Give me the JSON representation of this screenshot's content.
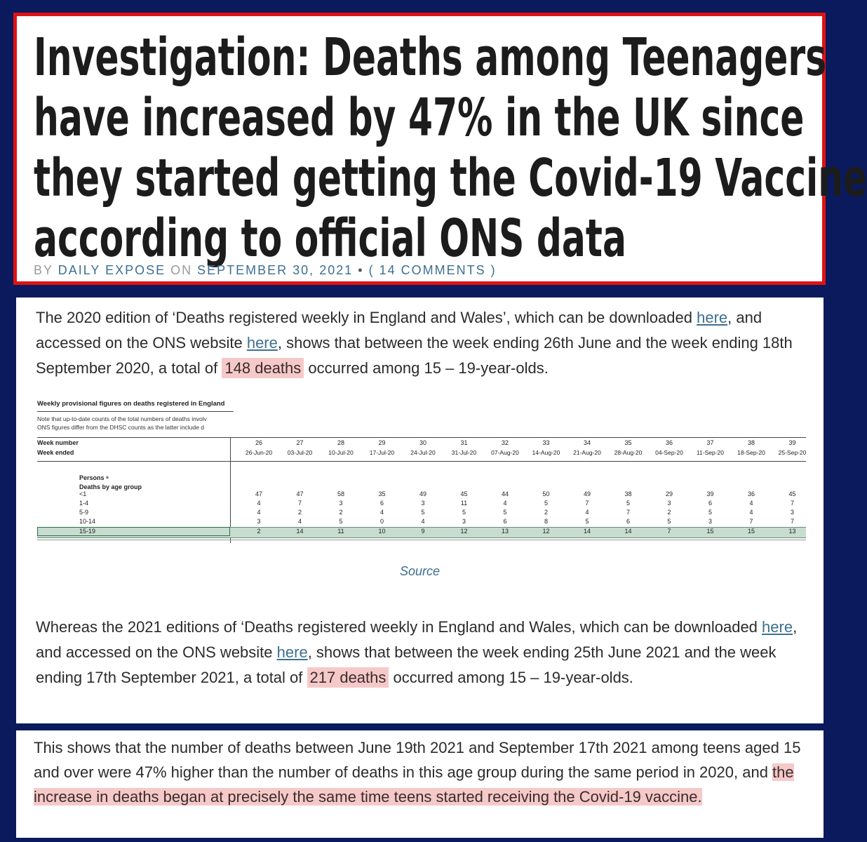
{
  "headline": {
    "lines": [
      "Investigation: Deaths among Teenagers",
      "have increased by 47% in the UK since",
      "they started getting the Covid-19 Vaccine",
      "according to official ONS data"
    ]
  },
  "byline": {
    "by": "BY",
    "author": "DAILY EXPOSE",
    "on": "ON",
    "date": "SEPTEMBER 30, 2021",
    "sep": "•",
    "comments": "( 14 COMMENTS )"
  },
  "para1": {
    "t1": "The 2020 edition of ‘Deaths registered weekly in England and Wales’, which can be downloaded ",
    "link1": "here",
    "t2": ", and accessed on the ONS website ",
    "link2": "here",
    "t3": ", shows that between the week ending 26th June and the week ending 18th September 2020, a total of ",
    "highlight": "148 deaths",
    "t4": " occurred among 15 – 19-year-olds."
  },
  "spreadsheet": {
    "title": "Weekly provisional figures on deaths registered in England",
    "note1": "Note that up-to-date counts of the total numbers of deaths involv",
    "note2": "ONS figures differ from the DHSC counts as the latter include d",
    "week_number_label": "Week number",
    "week_ended_label": "Week ended",
    "persons_label": "Persons ⁶",
    "deaths_label": "Deaths by age group",
    "weeks": [
      "26",
      "27",
      "28",
      "29",
      "30",
      "31",
      "32",
      "33",
      "34",
      "35",
      "36",
      "37",
      "38",
      "39"
    ],
    "dates": [
      "26-Jun-20",
      "03-Jul-20",
      "10-Jul-20",
      "17-Jul-20",
      "24-Jul-20",
      "31-Jul-20",
      "07-Aug-20",
      "14-Aug-20",
      "21-Aug-20",
      "28-Aug-20",
      "04-Sep-20",
      "11-Sep-20",
      "18-Sep-20",
      "25-Sep-20"
    ],
    "rows": [
      {
        "age": "<1",
        "values": [
          "47",
          "47",
          "58",
          "35",
          "49",
          "45",
          "44",
          "50",
          "49",
          "38",
          "29",
          "39",
          "36",
          "45"
        ]
      },
      {
        "age": "1-4",
        "values": [
          "4",
          "7",
          "3",
          "6",
          "3",
          "11",
          "4",
          "5",
          "7",
          "5",
          "3",
          "6",
          "4",
          "7"
        ]
      },
      {
        "age": "5-9",
        "values": [
          "4",
          "2",
          "2",
          "4",
          "5",
          "5",
          "5",
          "2",
          "4",
          "7",
          "2",
          "5",
          "4",
          "3"
        ]
      },
      {
        "age": "10-14",
        "values": [
          "3",
          "4",
          "5",
          "0",
          "4",
          "3",
          "6",
          "8",
          "5",
          "6",
          "5",
          "3",
          "7",
          "7"
        ]
      },
      {
        "age": "15-19",
        "values": [
          "2",
          "14",
          "11",
          "10",
          "9",
          "12",
          "13",
          "12",
          "14",
          "14",
          "7",
          "15",
          "15",
          "13"
        ]
      }
    ],
    "source_label": "Source"
  },
  "para2": {
    "t1": "Whereas the 2021 editions of ‘Deaths registered weekly in England and Wales, which can be downloaded ",
    "link1": "here",
    "t2": ", and accessed on the ONS website ",
    "link2": "here",
    "t3": ", shows that between the week ending 25th June 2021 and the week ending 17th September 2021, a total of ",
    "highlight": "217 deaths",
    "t4": " occurred among 15 – 19-year-olds."
  },
  "para3": {
    "t1": "This shows that the number of deaths between June 19th 2021 and September 17th 2021 among teens aged 15 and over were 47% higher than the number of deaths in this age group during the same period in 2020, and ",
    "highlight": "the increase in deaths began at precisely the same time teens started receiving the Covid-19 vaccine."
  },
  "colors": {
    "background": "#0b1a5c",
    "headline_border": "#e01212",
    "link": "#3d6f90",
    "highlight": "#f6c9c9"
  }
}
